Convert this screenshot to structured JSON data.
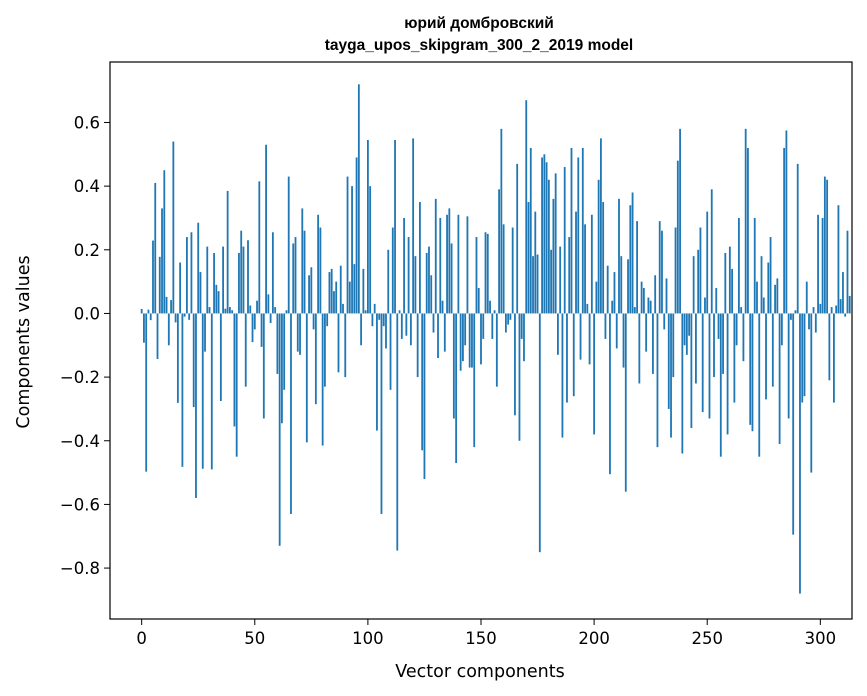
{
  "chart_data": {
    "type": "bar",
    "title": "юрий домбровский",
    "subtitle": "tayga_upos_skipgram_300_2_2019 model",
    "xlabel": "Vector components",
    "ylabel": "Components values",
    "xlim": [
      -14,
      314
    ],
    "ylim": [
      -0.96,
      0.79
    ],
    "xticks": [
      0,
      50,
      100,
      150,
      200,
      250,
      300
    ],
    "yticks": [
      -0.8,
      -0.6,
      -0.4,
      -0.2,
      0.0,
      0.2,
      0.4,
      0.6
    ],
    "ytick_labels": [
      "−0.8",
      "−0.6",
      "−0.4",
      "−0.2",
      "0.0",
      "0.2",
      "0.4",
      "0.6"
    ],
    "bar_color": "#1f77b4",
    "grid": false,
    "legend": "none",
    "values": [
      0.014,
      -0.092,
      -0.497,
      0.012,
      -0.021,
      0.229,
      0.41,
      -0.143,
      0.178,
      0.33,
      0.45,
      0.052,
      -0.1,
      0.042,
      0.54,
      -0.028,
      -0.281,
      0.16,
      -0.482,
      -0.01,
      0.24,
      -0.02,
      0.255,
      -0.294,
      -0.58,
      0.285,
      0.13,
      -0.488,
      -0.12,
      0.21,
      0.02,
      -0.49,
      0.19,
      0.09,
      0.07,
      -0.275,
      0.21,
      0.015,
      0.385,
      0.02,
      0.01,
      -0.355,
      -0.45,
      0.19,
      0.26,
      0.21,
      -0.23,
      0.23,
      0.025,
      -0.09,
      -0.05,
      0.04,
      0.415,
      -0.105,
      -0.33,
      0.53,
      0.06,
      -0.03,
      0.255,
      0.02,
      -0.19,
      -0.73,
      -0.345,
      -0.24,
      0.01,
      0.43,
      -0.63,
      0.22,
      0.24,
      -0.12,
      -0.13,
      0.33,
      0.26,
      -0.405,
      0.12,
      0.145,
      -0.05,
      -0.285,
      0.31,
      0.27,
      -0.415,
      -0.23,
      -0.04,
      0.13,
      0.14,
      0.07,
      0.1,
      -0.185,
      0.15,
      0.03,
      -0.2,
      0.43,
      0.1,
      0.4,
      0.155,
      0.49,
      0.72,
      -0.1,
      0.14,
      0.01,
      0.545,
      0.4,
      -0.04,
      0.03,
      -0.368,
      -0.02,
      -0.63,
      -0.04,
      -0.11,
      0.2,
      -0.24,
      0.27,
      0.545,
      -0.745,
      0.01,
      -0.08,
      0.3,
      -0.07,
      0.24,
      -0.1,
      0.55,
      0.18,
      -0.2,
      0.35,
      -0.43,
      -0.52,
      0.19,
      0.21,
      0.12,
      -0.06,
      0.36,
      -0.14,
      0.3,
      0.04,
      -0.12,
      0.31,
      0.33,
      0.22,
      -0.33,
      -0.47,
      0.31,
      -0.18,
      -0.15,
      -0.1,
      0.305,
      -0.17,
      -0.17,
      -0.42,
      0.24,
      0.08,
      -0.16,
      -0.08,
      0.255,
      0.25,
      0.04,
      -0.08,
      0.01,
      -0.23,
      0.39,
      0.58,
      0.28,
      -0.06,
      -0.035,
      -0.02,
      0.27,
      -0.32,
      0.47,
      -0.4,
      -0.08,
      -0.15,
      0.67,
      0.35,
      0.52,
      0.18,
      0.32,
      0.185,
      -0.75,
      0.49,
      0.5,
      0.475,
      0.42,
      0.2,
      0.36,
      0.44,
      -0.13,
      0.21,
      -0.39,
      0.46,
      -0.28,
      0.24,
      0.52,
      -0.26,
      0.32,
      0.49,
      -0.145,
      0.52,
      0.28,
      0.03,
      -0.16,
      0.31,
      -0.38,
      0.1,
      0.42,
      0.55,
      0.35,
      -0.08,
      0.15,
      -0.505,
      0.04,
      0.13,
      -0.11,
      0.36,
      0.18,
      -0.17,
      -0.56,
      0.17,
      0.34,
      0.38,
      0.02,
      0.29,
      -0.22,
      0.1,
      0.08,
      -0.12,
      0.05,
      0.04,
      -0.19,
      0.12,
      -0.42,
      0.29,
      0.26,
      -0.05,
      0.11,
      -0.3,
      -0.39,
      -0.2,
      0.27,
      0.48,
      0.58,
      -0.44,
      -0.1,
      -0.13,
      -0.07,
      -0.36,
      0.18,
      -0.22,
      0.2,
      0.27,
      -0.31,
      0.05,
      0.32,
      -0.33,
      0.39,
      -0.2,
      0.08,
      -0.08,
      -0.45,
      -0.19,
      0.19,
      -0.38,
      0.21,
      0.14,
      -0.28,
      -0.1,
      0.3,
      0.02,
      -0.15,
      0.58,
      0.52,
      -0.35,
      -0.37,
      0.3,
      0.1,
      -0.45,
      0.18,
      0.05,
      -0.27,
      0.16,
      0.24,
      -0.23,
      0.09,
      0.11,
      -0.41,
      -0.1,
      0.52,
      0.575,
      -0.33,
      -0.02,
      -0.695,
      0.01,
      0.47,
      -0.88,
      -0.28,
      -0.26,
      0.1,
      -0.05,
      -0.5,
      0.02,
      -0.06,
      0.31,
      0.03,
      0.3,
      0.43,
      0.42,
      -0.21,
      0.02,
      -0.28,
      0.025,
      0.34,
      0.045,
      0.13,
      -0.01,
      0.26,
      0.055
    ]
  }
}
